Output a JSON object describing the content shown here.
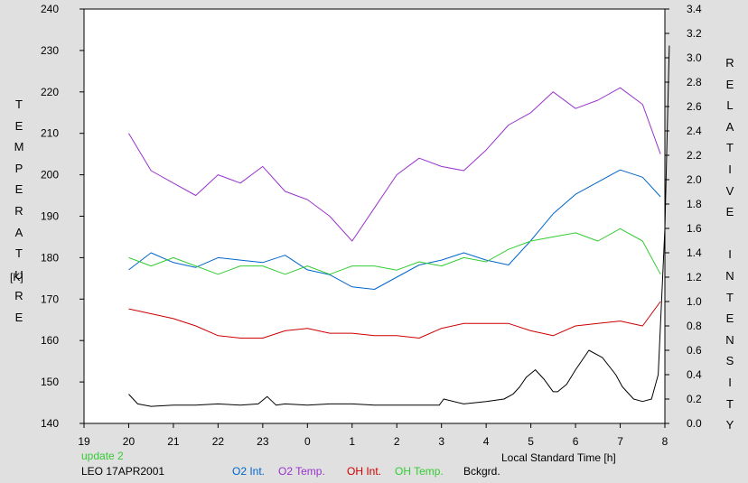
{
  "chart_data": {
    "type": "line",
    "xlabel": "Local Standard Time [h]",
    "x_ticks": [
      "19",
      "20",
      "21",
      "22",
      "23",
      "0",
      "1",
      "2",
      "3",
      "4",
      "5",
      "6",
      "7",
      "8"
    ],
    "ylabel_left": "TEMPERATURE",
    "ylabel_left_unit": "[K]",
    "ylim_left": [
      140,
      240
    ],
    "y_ticks_left": [
      "240",
      "230",
      "220",
      "210",
      "200",
      "190",
      "180",
      "170",
      "160",
      "150",
      "140"
    ],
    "ylabel_right": "RELATIVE INTENSITY",
    "ylim_right": [
      0.0,
      3.4
    ],
    "y_ticks_right": [
      "3.4",
      "3.2",
      "3.0",
      "2.8",
      "2.6",
      "2.4",
      "2.2",
      "2.0",
      "1.8",
      "1.6",
      "1.4",
      "1.2",
      "1.0",
      "0.8",
      "0.6",
      "0.4",
      "0.2",
      "0.0"
    ],
    "grid": false,
    "x_axis_hours_elapsed_from_19": true,
    "legend_position": "bottom",
    "series": [
      {
        "name": "O2 Int.",
        "axis": "right",
        "color": "#0066cc",
        "x": [
          20.0,
          20.5,
          21.0,
          21.5,
          22.0,
          22.5,
          23.0,
          23.5,
          24.0,
          24.5,
          25.0,
          25.5,
          26.0,
          26.5,
          27.0,
          27.5,
          28.0,
          28.5,
          29.0,
          29.5,
          30.0,
          30.5,
          31.0,
          31.5,
          31.9
        ],
        "y": [
          1.26,
          1.4,
          1.32,
          1.28,
          1.36,
          1.34,
          1.32,
          1.38,
          1.26,
          1.22,
          1.12,
          1.1,
          1.2,
          1.3,
          1.34,
          1.4,
          1.34,
          1.3,
          1.5,
          1.72,
          1.88,
          1.98,
          2.08,
          2.02,
          1.86
        ]
      },
      {
        "name": "O2 Temp.",
        "axis": "left",
        "color": "#9933cc",
        "x": [
          20.0,
          20.5,
          21.0,
          21.5,
          22.0,
          22.5,
          23.0,
          23.5,
          24.0,
          24.5,
          25.0,
          25.5,
          26.0,
          26.5,
          27.0,
          27.5,
          28.0,
          28.5,
          29.0,
          29.5,
          30.0,
          30.5,
          31.0,
          31.5,
          31.9
        ],
        "y": [
          210,
          201,
          198,
          195,
          200,
          198,
          202,
          196,
          194,
          190,
          184,
          192,
          200,
          204,
          202,
          201,
          206,
          212,
          215,
          220,
          216,
          218,
          221,
          217,
          205
        ]
      },
      {
        "name": "OH Int.",
        "axis": "right",
        "color": "#cc0000",
        "x": [
          20.0,
          20.5,
          21.0,
          21.5,
          22.0,
          22.5,
          23.0,
          23.5,
          24.0,
          24.5,
          25.0,
          25.5,
          26.0,
          26.5,
          27.0,
          27.5,
          28.0,
          28.5,
          29.0,
          29.5,
          30.0,
          30.5,
          31.0,
          31.5,
          31.9
        ],
        "y": [
          0.94,
          0.9,
          0.86,
          0.8,
          0.72,
          0.7,
          0.7,
          0.76,
          0.78,
          0.74,
          0.74,
          0.72,
          0.72,
          0.7,
          0.78,
          0.82,
          0.82,
          0.82,
          0.76,
          0.72,
          0.8,
          0.82,
          0.84,
          0.8,
          1.0
        ]
      },
      {
        "name": "OH Temp.",
        "axis": "left",
        "color": "#33cc33",
        "x": [
          20.0,
          20.5,
          21.0,
          21.5,
          22.0,
          22.5,
          23.0,
          23.5,
          24.0,
          24.5,
          25.0,
          25.5,
          26.0,
          26.5,
          27.0,
          27.5,
          28.0,
          28.5,
          29.0,
          29.5,
          30.0,
          30.5,
          31.0,
          31.5,
          31.9
        ],
        "y": [
          180,
          178,
          180,
          178,
          176,
          178,
          178,
          176,
          178,
          176,
          178,
          178,
          177,
          179,
          178,
          180,
          179,
          182,
          184,
          185,
          186,
          184,
          187,
          184,
          176
        ]
      },
      {
        "name": "Bckgrd.",
        "axis": "right",
        "color": "#000000",
        "x": [
          20.0,
          20.2,
          20.5,
          21.0,
          21.5,
          22.0,
          22.5,
          22.9,
          23.1,
          23.3,
          23.5,
          24.0,
          24.5,
          25.0,
          25.5,
          26.0,
          26.5,
          26.95,
          27.05,
          27.5,
          28.0,
          28.4,
          28.6,
          28.75,
          28.9,
          29.1,
          29.3,
          29.5,
          29.6,
          29.8,
          30.0,
          30.3,
          30.6,
          30.9,
          31.05,
          31.3,
          31.5,
          31.7,
          31.85,
          32.0,
          32.1
        ],
        "y": [
          0.24,
          0.16,
          0.14,
          0.15,
          0.15,
          0.16,
          0.15,
          0.16,
          0.22,
          0.15,
          0.16,
          0.15,
          0.16,
          0.16,
          0.15,
          0.15,
          0.15,
          0.15,
          0.2,
          0.16,
          0.18,
          0.2,
          0.24,
          0.3,
          0.38,
          0.44,
          0.36,
          0.26,
          0.26,
          0.32,
          0.44,
          0.6,
          0.54,
          0.4,
          0.3,
          0.2,
          0.18,
          0.2,
          0.4,
          1.6,
          3.1
        ]
      }
    ]
  },
  "footer": {
    "update_label": "update 2",
    "station_label": "LEO 17APR2001"
  }
}
